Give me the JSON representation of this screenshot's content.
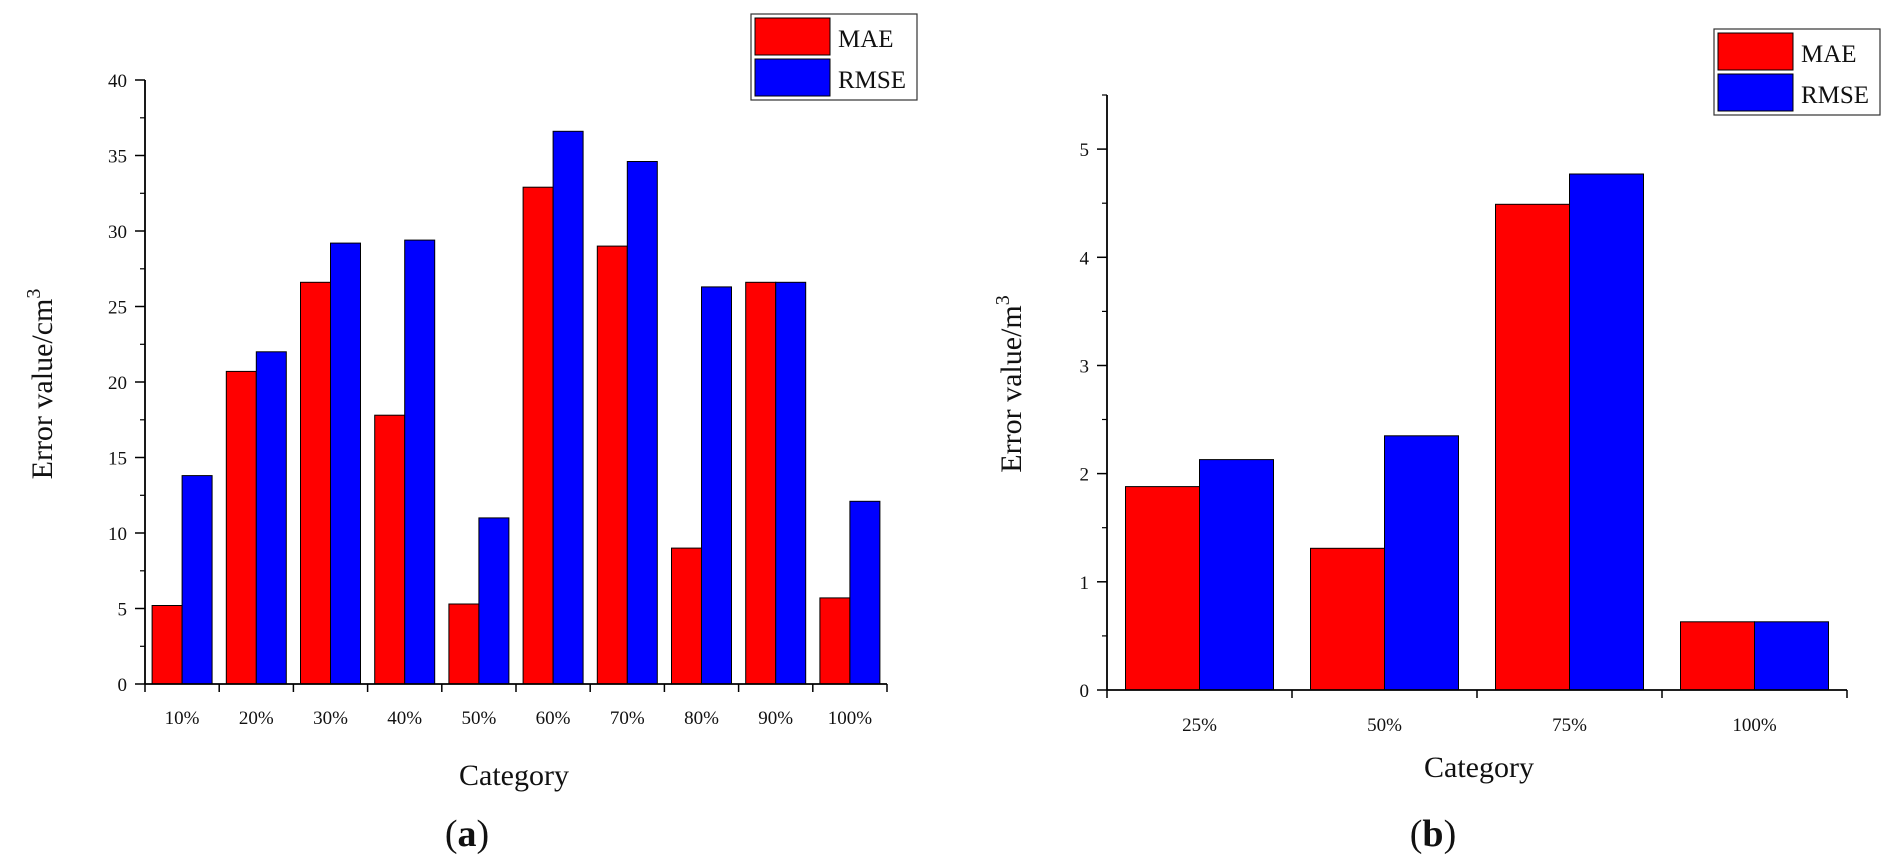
{
  "chart_data": [
    {
      "id": "a",
      "type": "bar",
      "panel_label_prefix": "(",
      "panel_label_letter": "a",
      "panel_label_suffix": ")",
      "title": "",
      "xlabel": "Category",
      "ylabel_main": "Error value/cm",
      "ylabel_sup": "3",
      "ylim": [
        0,
        40
      ],
      "yticks": [
        0,
        5,
        10,
        15,
        20,
        25,
        30,
        35,
        40
      ],
      "categories": [
        "10%",
        "20%",
        "30%",
        "40%",
        "50%",
        "60%",
        "70%",
        "80%",
        "90%",
        "100%"
      ],
      "series": [
        {
          "name": "MAE",
          "color": "#ff0000",
          "values": [
            5.2,
            20.7,
            26.6,
            17.8,
            5.3,
            32.9,
            29.0,
            9.0,
            26.6,
            5.7
          ]
        },
        {
          "name": "RMSE",
          "color": "#0000ff",
          "values": [
            13.8,
            22.0,
            29.2,
            29.4,
            11.0,
            36.6,
            34.6,
            26.3,
            26.6,
            12.1
          ]
        }
      ],
      "legend_position": "top-right"
    },
    {
      "id": "b",
      "type": "bar",
      "panel_label_prefix": "(",
      "panel_label_letter": "b",
      "panel_label_suffix": ")",
      "title": "",
      "xlabel": "Category",
      "ylabel_main": "Error value/m",
      "ylabel_sup": "3",
      "ylim": [
        0,
        5.5
      ],
      "yticks": [
        0,
        1,
        2,
        3,
        4,
        5
      ],
      "categories": [
        "25%",
        "50%",
        "75%",
        "100%"
      ],
      "series": [
        {
          "name": "MAE",
          "color": "#ff0000",
          "values": [
            1.88,
            1.31,
            4.49,
            0.63
          ]
        },
        {
          "name": "RMSE",
          "color": "#0000ff",
          "values": [
            2.13,
            2.35,
            4.77,
            0.63
          ]
        }
      ],
      "legend_position": "top-right"
    }
  ]
}
